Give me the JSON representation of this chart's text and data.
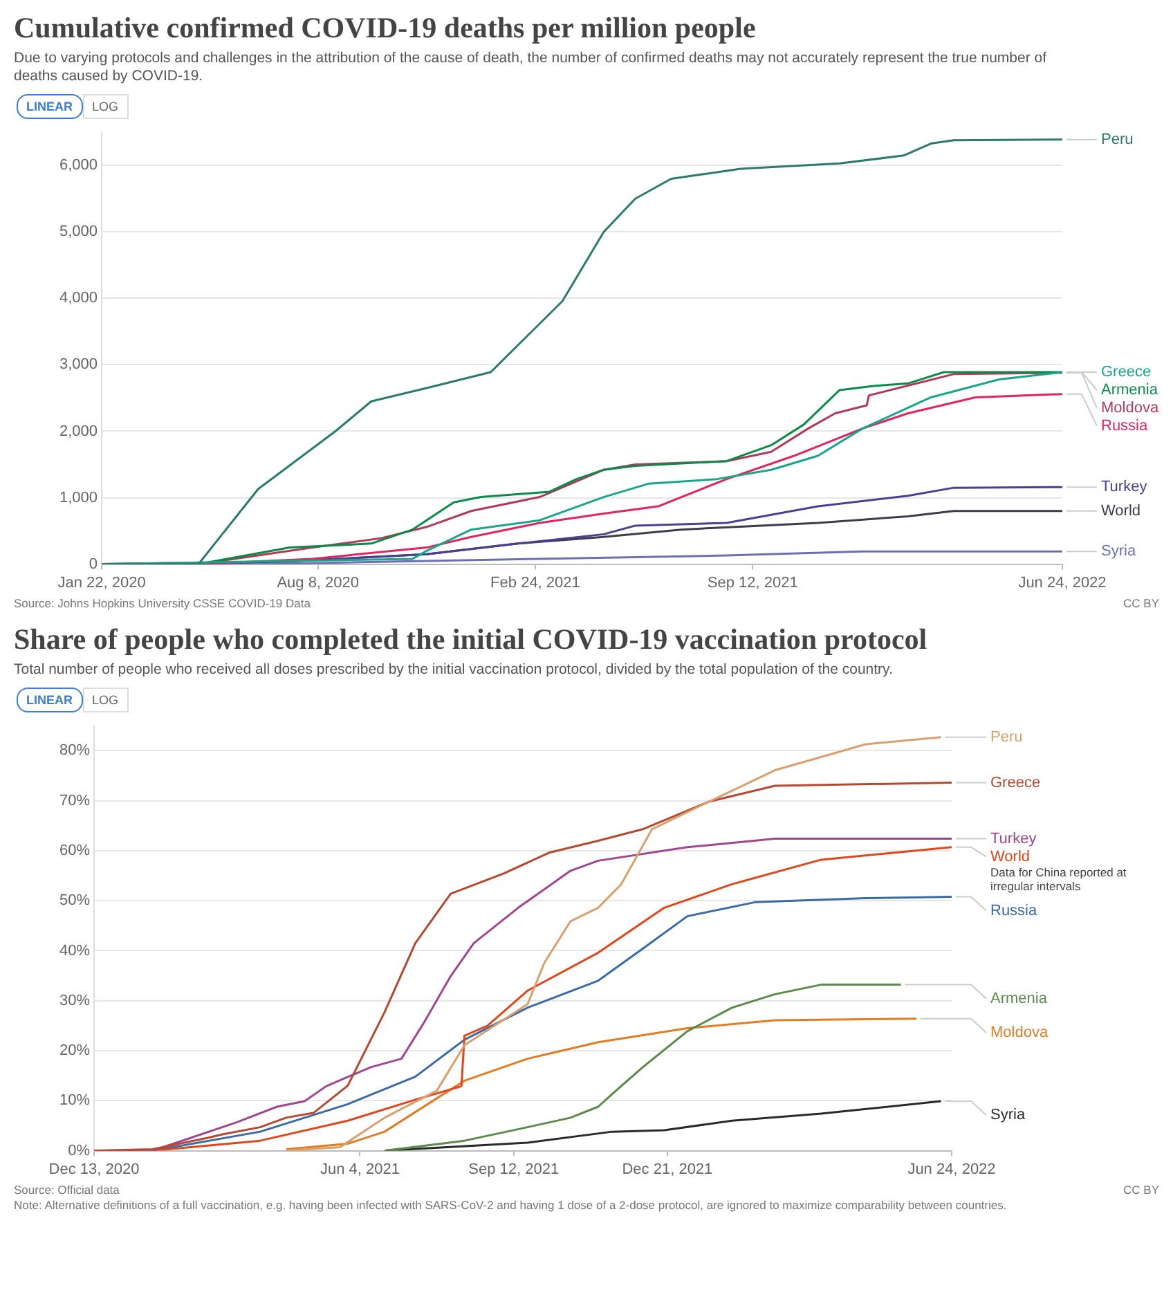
{
  "chart_data": [
    {
      "type": "line",
      "title": "Cumulative confirmed COVID-19 deaths per million people",
      "subtitle": "Due to varying protocols and challenges in the attribution of the cause of death, the number of confirmed deaths may not accurately represent the true number of deaths caused by COVID-19.",
      "annotations": [
        "LINEAR",
        "LOG",
        "Source: Johns Hopkins University CSSE COVID-19 Data",
        "CC BY"
      ],
      "xlim": [
        "2020-01-22",
        "2022-06-24"
      ],
      "xticks": [
        {
          "value": "2020-01-22",
          "label": "Jan 22, 2020"
        },
        {
          "value": "2020-08-08",
          "label": "Aug 8, 2020"
        },
        {
          "value": "2021-02-24",
          "label": "Feb 24, 2021"
        },
        {
          "value": "2021-09-12",
          "label": "Sep 12, 2021"
        },
        {
          "value": "2022-06-24",
          "label": "Jun 24, 2022"
        }
      ],
      "ylim": [
        0,
        6500
      ],
      "yticks": [
        0,
        {
          "value": 1000,
          "label": "1,000"
        },
        {
          "value": 2000,
          "label": "2,000"
        },
        {
          "value": 3000,
          "label": "3,000"
        },
        {
          "value": 4000,
          "label": "4,000"
        },
        {
          "value": 5000,
          "label": "5,000"
        },
        {
          "value": 6000,
          "label": "6,000"
        }
      ],
      "grid": "y",
      "marker": "none",
      "line_style": "solid",
      "series": [
        {
          "name": "Peru",
          "color": "#2b7a6b",
          "x": [
            "2020-01-22",
            "2020-04-20",
            "2020-06-14",
            "2020-08-24",
            "2020-09-26",
            "2020-11-16",
            "2021-01-14",
            "2021-03-21",
            "2021-04-28",
            "2021-05-27",
            "2021-06-29",
            "2021-09-01",
            "2021-12-01",
            "2022-01-29",
            "2022-02-23",
            "2022-03-16",
            "2022-06-24"
          ],
          "values": [
            0,
            0,
            1130,
            2000,
            2450,
            2650,
            2890,
            3960,
            5000,
            5500,
            5800,
            5950,
            6030,
            6150,
            6330,
            6380,
            6390
          ]
        },
        {
          "name": "Greece",
          "color": "#18a58a",
          "x": [
            "2020-01-22",
            "2020-11-03",
            "2020-11-16",
            "2020-12-27",
            "2021-02-28",
            "2021-04-28",
            "2021-06-08",
            "2021-08-10",
            "2021-09-29",
            "2021-11-11",
            "2021-12-22",
            "2022-02-23",
            "2022-04-27",
            "2022-06-24"
          ],
          "values": [
            0,
            80,
            200,
            520,
            660,
            1010,
            1210,
            1280,
            1420,
            1630,
            2040,
            2510,
            2780,
            2890
          ]
        },
        {
          "name": "Armenia",
          "color": "#0c8a4a",
          "x": [
            "2020-01-22",
            "2020-04-20",
            "2020-07-13",
            "2020-09-26",
            "2020-11-03",
            "2020-12-11",
            "2021-01-05",
            "2021-03-09",
            "2021-04-03",
            "2021-04-28",
            "2021-05-27",
            "2021-08-19",
            "2021-09-29",
            "2021-10-29",
            "2021-12-01",
            "2021-12-31",
            "2022-02-02",
            "2022-03-07",
            "2022-06-24"
          ],
          "values": [
            0,
            0,
            250,
            310,
            520,
            930,
            1010,
            1090,
            1280,
            1420,
            1480,
            1550,
            1790,
            2100,
            2620,
            2680,
            2720,
            2890,
            2890
          ]
        },
        {
          "name": "Moldova",
          "color": "#b03a5b",
          "x": [
            "2020-01-22",
            "2020-04-20",
            "2020-08-03",
            "2020-10-05",
            "2020-11-16",
            "2020-12-27",
            "2021-02-28",
            "2021-04-28",
            "2021-05-27",
            "2021-08-19",
            "2021-09-29",
            "2021-11-02",
            "2021-11-27",
            "2021-12-26",
            "2021-12-28",
            "2022-02-10",
            "2022-03-16",
            "2022-06-24"
          ],
          "values": [
            0,
            0,
            250,
            390,
            560,
            800,
            1010,
            1420,
            1500,
            1550,
            1690,
            2040,
            2270,
            2390,
            2540,
            2720,
            2860,
            2880
          ]
        },
        {
          "name": "Russia",
          "color": "#e0245e",
          "x": [
            "2020-01-22",
            "2020-04-20",
            "2020-08-03",
            "2020-11-16",
            "2020-12-27",
            "2021-02-28",
            "2021-04-28",
            "2021-06-17",
            "2021-08-19",
            "2021-10-20",
            "2021-12-22",
            "2022-02-02",
            "2022-04-05",
            "2022-06-24"
          ],
          "values": [
            0,
            0,
            80,
            250,
            410,
            620,
            760,
            870,
            1280,
            1630,
            2040,
            2270,
            2510,
            2560
          ]
        },
        {
          "name": "Turkey",
          "color": "#4c3e91",
          "x": [
            "2020-01-22",
            "2020-04-20",
            "2020-08-24",
            "2020-11-16",
            "2021-02-08",
            "2021-04-28",
            "2021-05-27",
            "2021-08-19",
            "2021-11-11",
            "2022-02-02",
            "2022-03-16",
            "2022-06-24"
          ],
          "values": [
            0,
            0,
            80,
            150,
            310,
            450,
            580,
            620,
            870,
            1030,
            1150,
            1160
          ]
        },
        {
          "name": "World",
          "color": "#3c3c4a",
          "x": [
            "2020-01-22",
            "2020-04-20",
            "2020-07-13",
            "2020-11-16",
            "2021-02-08",
            "2021-04-28",
            "2021-07-08",
            "2021-11-11",
            "2022-02-02",
            "2022-03-16",
            "2022-06-24"
          ],
          "values": [
            0,
            20,
            40,
            150,
            310,
            410,
            520,
            620,
            720,
            800,
            800
          ]
        },
        {
          "name": "Syria",
          "color": "#6d6fb4",
          "x": [
            "2020-01-22",
            "2020-07-13",
            "2021-02-28",
            "2021-08-19",
            "2021-12-22",
            "2022-06-24"
          ],
          "values": [
            0,
            10,
            80,
            130,
            190,
            190
          ]
        }
      ]
    },
    {
      "type": "line",
      "title": "Share of people who completed the initial COVID-19 vaccination protocol",
      "subtitle": "Total number of people who received all doses prescribed by the initial vaccination protocol, divided by the total population of the country.",
      "annotations": [
        "LINEAR",
        "LOG",
        "Source: Official data",
        "Note: Alternative definitions of a full vaccination, e.g. having been infected with SARS-CoV-2 and having 1 dose of a 2-dose protocol, are ignored to maximize comparability between countries.",
        "CC BY",
        {
          "text": "Data for China reported at irregular intervals",
          "x": "2022-06-24",
          "y": 60.7
        }
      ],
      "xlim": [
        "2020-12-13",
        "2022-06-24"
      ],
      "xticks": [
        {
          "value": "2020-12-13",
          "label": "Dec 13, 2020"
        },
        {
          "value": "2021-06-04",
          "label": "Jun 4, 2021"
        },
        {
          "value": "2021-09-12",
          "label": "Sep 12, 2021"
        },
        {
          "value": "2021-12-21",
          "label": "Dec 21, 2021"
        },
        {
          "value": "2022-06-24",
          "label": "Jun 24, 2022"
        }
      ],
      "ylim": [
        0,
        85
      ],
      "yticks": [
        {
          "value": 0,
          "label": "0%"
        },
        {
          "value": 10,
          "label": "10%"
        },
        {
          "value": 20,
          "label": "20%"
        },
        {
          "value": 30,
          "label": "30%"
        },
        {
          "value": 40,
          "label": "40%"
        },
        {
          "value": 50,
          "label": "50%"
        },
        {
          "value": 60,
          "label": "60%"
        },
        {
          "value": 70,
          "label": "70%"
        },
        {
          "value": 80,
          "label": "80%"
        }
      ],
      "grid": "y",
      "marker": "none",
      "line_style": "solid",
      "series": [
        {
          "name": "Peru",
          "color": "#d9a06e",
          "x": [
            "2021-04-17",
            "2021-05-22",
            "2021-06-20",
            "2021-07-24",
            "2021-08-11",
            "2021-09-21",
            "2021-10-02",
            "2021-10-19",
            "2021-11-06",
            "2021-11-21",
            "2021-12-11",
            "2022-01-17",
            "2022-03-01",
            "2022-04-29",
            "2022-06-17"
          ],
          "values": [
            0,
            0.7,
            6.6,
            12,
            21.1,
            29.3,
            37.6,
            45.9,
            48.6,
            53.3,
            64.3,
            69.8,
            76.1,
            81.3,
            82.7
          ]
        },
        {
          "name": "Greece",
          "color": "#b5492f",
          "x": [
            "2020-12-13",
            "2021-01-20",
            "2021-02-24",
            "2021-03-07",
            "2021-03-31",
            "2021-04-17",
            "2021-05-05",
            "2021-05-27",
            "2021-06-20",
            "2021-07-10",
            "2021-08-02",
            "2021-09-06",
            "2021-10-05",
            "2021-11-06",
            "2021-12-05",
            "2022-01-17",
            "2022-03-01",
            "2022-06-24"
          ],
          "values": [
            0,
            0.3,
            2.5,
            3.3,
            4.7,
            6.6,
            7.6,
            13,
            27.7,
            41.5,
            51.4,
            55.5,
            59.6,
            62,
            64.3,
            69.8,
            73,
            73.6
          ]
        },
        {
          "name": "Turkey",
          "color": "#a0468e",
          "x": [
            "2020-12-13",
            "2021-01-20",
            "2021-03-16",
            "2021-04-11",
            "2021-04-29",
            "2021-05-13",
            "2021-06-11",
            "2021-07-01",
            "2021-07-16",
            "2021-08-02",
            "2021-08-17",
            "2021-09-15",
            "2021-10-19",
            "2021-11-06",
            "2022-01-03",
            "2022-03-01",
            "2022-06-24"
          ],
          "values": [
            0,
            0,
            5.7,
            8.8,
            9.9,
            12.9,
            16.7,
            18.4,
            25.8,
            34.9,
            41.5,
            48.6,
            56,
            58,
            60.7,
            62.4,
            62.4
          ]
        },
        {
          "name": "World",
          "color": "#e0461c",
          "x": [
            "2020-12-13",
            "2021-01-20",
            "2021-03-31",
            "2021-05-27",
            "2021-07-10",
            "2021-08-09",
            "2021-08-11",
            "2021-08-26",
            "2021-09-21",
            "2021-11-06",
            "2021-12-19",
            "2022-02-01",
            "2022-03-31",
            "2022-06-24"
          ],
          "values": [
            0,
            0,
            2,
            6,
            10.2,
            12.9,
            23,
            25,
            32,
            39.6,
            48.6,
            53.3,
            58.2,
            60.7
          ]
        },
        {
          "name": "Russia",
          "color": "#3a6aa8",
          "x": [
            "2020-12-13",
            "2021-01-20",
            "2021-03-31",
            "2021-05-27",
            "2021-07-10",
            "2021-08-11",
            "2021-09-21",
            "2021-11-06",
            "2021-12-05",
            "2022-01-03",
            "2022-02-16",
            "2022-04-29",
            "2022-06-24"
          ],
          "values": [
            0,
            0,
            3.8,
            9.3,
            14.8,
            22.2,
            28.6,
            34,
            40.4,
            46.9,
            49.7,
            50.5,
            50.8
          ]
        },
        {
          "name": "Armenia",
          "color": "#5b8a4a",
          "x": [
            "2021-06-20",
            "2021-08-11",
            "2021-09-21",
            "2021-10-19",
            "2021-11-06",
            "2021-11-15",
            "2021-12-05",
            "2022-01-03",
            "2022-02-01",
            "2022-03-01",
            "2022-03-31",
            "2022-05-22"
          ],
          "values": [
            0,
            2,
            4.7,
            6.6,
            8.8,
            11.3,
            16.7,
            23.9,
            28.6,
            31.3,
            33.2,
            33.2
          ]
        },
        {
          "name": "Moldova",
          "color": "#e07c22",
          "x": [
            "2021-04-17",
            "2021-05-27",
            "2021-06-20",
            "2021-07-18",
            "2021-08-11",
            "2021-09-21",
            "2021-11-06",
            "2022-01-03",
            "2022-03-01",
            "2022-06-01"
          ],
          "values": [
            0.3,
            1.4,
            3.8,
            9.3,
            14,
            18.4,
            21.7,
            24.5,
            26.1,
            26.4
          ]
        },
        {
          "name": "Syria",
          "color": "#2a2a2a",
          "x": [
            "2021-06-20",
            "2021-09-21",
            "2021-11-15",
            "2021-12-19",
            "2022-02-01",
            "2022-03-31",
            "2022-06-17"
          ],
          "values": [
            0,
            1.6,
            3.8,
            4.1,
            6,
            7.4,
            9.9
          ]
        }
      ]
    }
  ]
}
